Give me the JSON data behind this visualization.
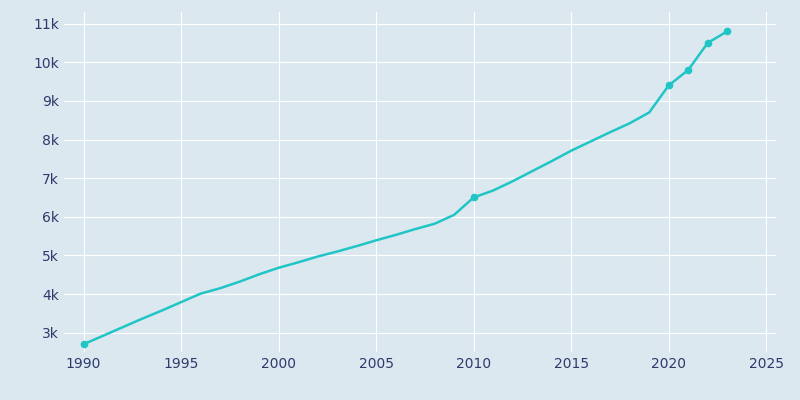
{
  "years": [
    1990,
    1991,
    1992,
    1993,
    1994,
    1995,
    1996,
    1997,
    1998,
    1999,
    2000,
    2001,
    2002,
    2003,
    2004,
    2005,
    2006,
    2007,
    2008,
    2009,
    2010,
    2011,
    2012,
    2013,
    2014,
    2015,
    2016,
    2017,
    2018,
    2019,
    2020,
    2021,
    2022,
    2023
  ],
  "population": [
    2700,
    2920,
    3140,
    3360,
    3570,
    3790,
    4010,
    4150,
    4320,
    4510,
    4680,
    4820,
    4970,
    5100,
    5240,
    5390,
    5530,
    5680,
    5820,
    6050,
    6500,
    6680,
    6920,
    7180,
    7440,
    7710,
    7950,
    8190,
    8420,
    8700,
    9400,
    9800,
    10500,
    10800
  ],
  "line_color": "#20c5c5",
  "marker_years": [
    1990,
    2010,
    2020,
    2021,
    2022,
    2023
  ],
  "marker_values": [
    2700,
    6500,
    9400,
    9800,
    10500,
    10800
  ],
  "background_color": "#dce8f0",
  "axes_background_color": "#dce8f0",
  "grid_color": "#ffffff",
  "tick_label_color": "#2d3a6b",
  "xlim": [
    1989.0,
    2025.5
  ],
  "ylim": [
    2500,
    11300
  ],
  "xticks": [
    1990,
    1995,
    2000,
    2005,
    2010,
    2015,
    2020,
    2025
  ],
  "yticks": [
    3000,
    4000,
    5000,
    6000,
    7000,
    8000,
    9000,
    10000,
    11000
  ],
  "ytick_labels": [
    "3k",
    "4k",
    "5k",
    "6k",
    "7k",
    "8k",
    "9k",
    "10k",
    "11k"
  ],
  "line_width": 1.8,
  "marker_size": 4.5,
  "figwidth": 8.0,
  "figheight": 4.0,
  "dpi": 100
}
